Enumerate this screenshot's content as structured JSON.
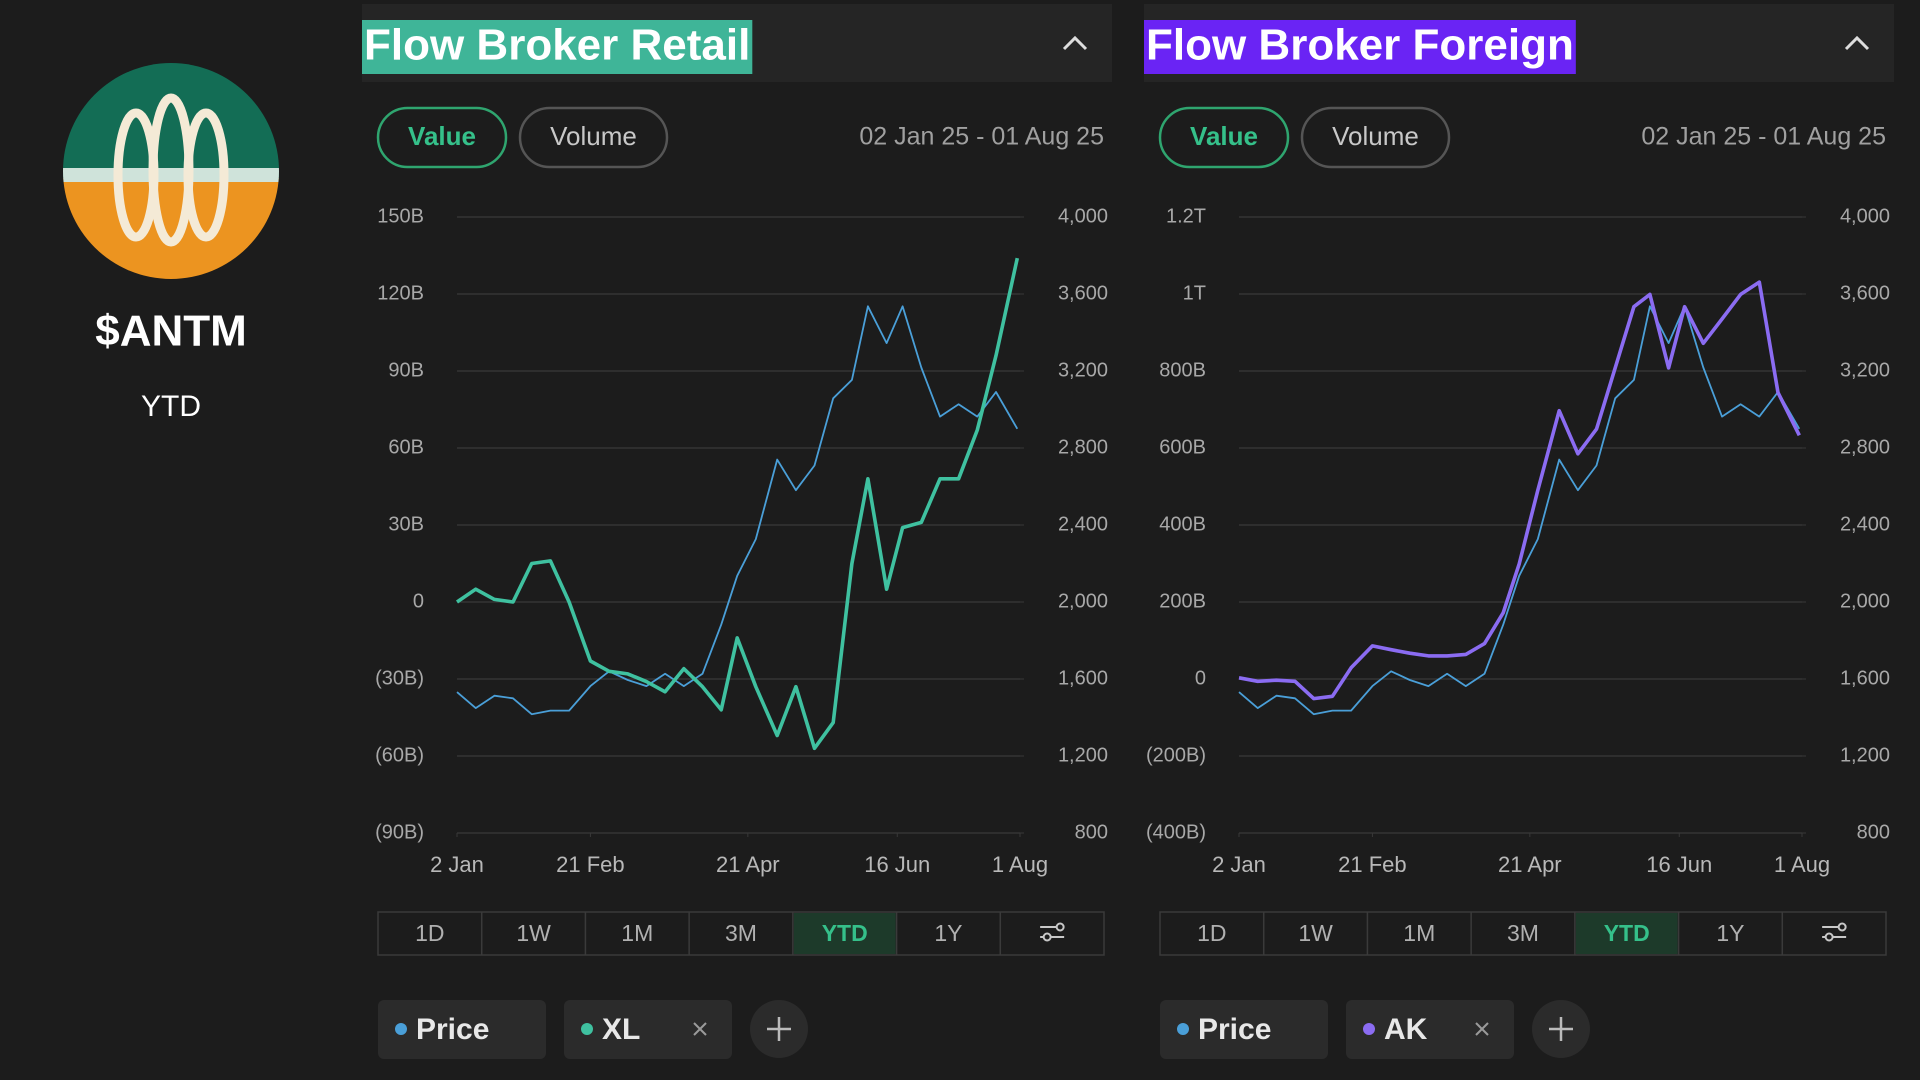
{
  "sidebar": {
    "ticker": "$ANTM",
    "period": "YTD"
  },
  "panels": [
    {
      "title": "Flow Broker Retail",
      "toggles": [
        "Value",
        "Volume"
      ],
      "date_range": "02 Jan 25 - 01 Aug 25",
      "ranges": [
        "1D",
        "1W",
        "1M",
        "3M",
        "YTD",
        "1Y"
      ]
    },
    {
      "title": "Flow Broker Foreign",
      "toggles": [
        "Value",
        "Volume"
      ],
      "date_range": "02 Jan 25 - 01 Aug 25",
      "ranges": [
        "1D",
        "1W",
        "1M",
        "3M",
        "YTD",
        "1Y"
      ]
    }
  ],
  "chart_data": [
    {
      "type": "line",
      "x": [
        "2025-01-02",
        "2025-01-09",
        "2025-01-16",
        "2025-01-23",
        "2025-01-30",
        "2025-02-06",
        "2025-02-13",
        "2025-02-21",
        "2025-02-28",
        "2025-03-07",
        "2025-03-14",
        "2025-03-21",
        "2025-03-28",
        "2025-04-04",
        "2025-04-11",
        "2025-04-17",
        "2025-04-24",
        "2025-05-02",
        "2025-05-09",
        "2025-05-16",
        "2025-05-23",
        "2025-05-30",
        "2025-06-05",
        "2025-06-12",
        "2025-06-18",
        "2025-06-25",
        "2025-07-02",
        "2025-07-09",
        "2025-07-16",
        "2025-07-23",
        "2025-07-31"
      ],
      "xlim": [
        "2025-01-02",
        "2025-08-01"
      ],
      "xticks": [
        {
          "value": "2025-01-02",
          "label": "2 Jan"
        },
        {
          "value": "2025-02-21",
          "label": "21 Feb"
        },
        {
          "value": "2025-04-21",
          "label": "21 Apr"
        },
        {
          "value": "2025-06-16",
          "label": "16 Jun"
        },
        {
          "value": "2025-08-01",
          "label": "1 Aug"
        }
      ],
      "ylim": [
        -90,
        150
      ],
      "yticks": [
        {
          "value": -90,
          "label": "(90B)"
        },
        {
          "value": -60,
          "label": "(60B)"
        },
        {
          "value": -30,
          "label": "(30B)"
        },
        0,
        {
          "value": 30,
          "label": "30B"
        },
        {
          "value": 60,
          "label": "60B"
        },
        {
          "value": 90,
          "label": "90B"
        },
        {
          "value": 120,
          "label": "120B"
        },
        {
          "value": 150,
          "label": "150B"
        }
      ],
      "y2lim": [
        800,
        4000
      ],
      "y2ticks": [
        800,
        {
          "value": 1200,
          "label": "1,200"
        },
        {
          "value": 1600,
          "label": "1,600"
        },
        {
          "value": 2000,
          "label": "2,000"
        },
        {
          "value": 2400,
          "label": "2,400"
        },
        {
          "value": 2800,
          "label": "2,800"
        },
        {
          "value": 3200,
          "label": "3,200"
        },
        {
          "value": 3600,
          "label": "3,600"
        },
        {
          "value": 4000,
          "label": "4,000"
        }
      ],
      "grid": true,
      "series": [
        {
          "name": "Price",
          "color": "#4a9fd8",
          "axis": "y2",
          "values": [
            1532,
            1449,
            1513,
            1500,
            1417,
            1436,
            1436,
            1563,
            1640,
            1595,
            1563,
            1627,
            1563,
            1627,
            1882,
            2136,
            2327,
            2740,
            2581,
            2709,
            3058,
            3154,
            3536,
            3345,
            3536,
            3218,
            2963,
            3027,
            2963,
            3091,
            2900
          ]
        },
        {
          "name": "XL",
          "color": "#3fc1a0",
          "values": [
            0,
            5,
            1,
            0,
            15,
            16,
            0,
            -23,
            -27,
            -28,
            -31,
            -35,
            -26,
            -33,
            -42,
            -14,
            -33,
            -52,
            -33,
            -57,
            -47,
            15,
            48,
            5,
            29,
            31,
            48,
            48,
            67,
            96,
            134
          ]
        }
      ]
    },
    {
      "type": "line",
      "x": [
        "2025-01-02",
        "2025-01-09",
        "2025-01-16",
        "2025-01-23",
        "2025-01-30",
        "2025-02-06",
        "2025-02-13",
        "2025-02-21",
        "2025-02-28",
        "2025-03-07",
        "2025-03-14",
        "2025-03-21",
        "2025-03-28",
        "2025-04-04",
        "2025-04-11",
        "2025-04-17",
        "2025-04-24",
        "2025-05-02",
        "2025-05-09",
        "2025-05-16",
        "2025-05-23",
        "2025-05-30",
        "2025-06-05",
        "2025-06-12",
        "2025-06-18",
        "2025-06-25",
        "2025-07-02",
        "2025-07-09",
        "2025-07-16",
        "2025-07-23",
        "2025-07-31"
      ],
      "xlim": [
        "2025-01-02",
        "2025-08-01"
      ],
      "xticks": [
        {
          "value": "2025-01-02",
          "label": "2 Jan"
        },
        {
          "value": "2025-02-21",
          "label": "21 Feb"
        },
        {
          "value": "2025-04-21",
          "label": "21 Apr"
        },
        {
          "value": "2025-06-16",
          "label": "16 Jun"
        },
        {
          "value": "2025-08-01",
          "label": "1 Aug"
        }
      ],
      "ylim": [
        -400,
        1200
      ],
      "yticks": [
        {
          "value": -400,
          "label": "(400B)"
        },
        {
          "value": -200,
          "label": "(200B)"
        },
        0,
        {
          "value": 200,
          "label": "200B"
        },
        {
          "value": 400,
          "label": "400B"
        },
        {
          "value": 600,
          "label": "600B"
        },
        {
          "value": 800,
          "label": "800B"
        },
        {
          "value": 1000,
          "label": "1T"
        },
        {
          "value": 1200,
          "label": "1.2T"
        }
      ],
      "y2lim": [
        800,
        4000
      ],
      "y2ticks": [
        800,
        {
          "value": 1200,
          "label": "1,200"
        },
        {
          "value": 1600,
          "label": "1,600"
        },
        {
          "value": 2000,
          "label": "2,000"
        },
        {
          "value": 2400,
          "label": "2,400"
        },
        {
          "value": 2800,
          "label": "2,800"
        },
        {
          "value": 3200,
          "label": "3,200"
        },
        {
          "value": 3600,
          "label": "3,600"
        },
        {
          "value": 4000,
          "label": "4,000"
        }
      ],
      "grid": true,
      "series": [
        {
          "name": "Price",
          "color": "#4a9fd8",
          "axis": "y2",
          "values": [
            1532,
            1449,
            1513,
            1500,
            1417,
            1436,
            1436,
            1563,
            1640,
            1595,
            1563,
            1627,
            1563,
            1627,
            1882,
            2136,
            2327,
            2740,
            2581,
            2709,
            3058,
            3154,
            3536,
            3345,
            3536,
            3218,
            2963,
            3027,
            2963,
            3091,
            2900
          ]
        },
        {
          "name": "AK",
          "color": "#8b6cf2",
          "values": [
            3,
            -6,
            -3,
            -6,
            -51,
            -45,
            29,
            86,
            76,
            67,
            60,
            60,
            64,
            92,
            172,
            299,
            490,
            697,
            585,
            649,
            808,
            967,
            999,
            808,
            967,
            872,
            935,
            999,
            1031,
            744,
            633
          ]
        }
      ]
    }
  ]
}
